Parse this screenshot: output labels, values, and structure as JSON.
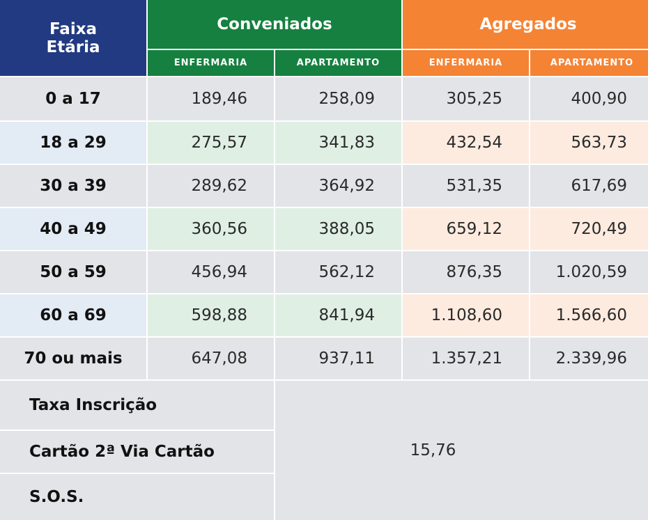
{
  "header": {
    "faixa_line1": "Faixa",
    "faixa_line2": "Etária",
    "group_conveniados": "Conveniados",
    "group_agregados": "Agregados",
    "subheaders": [
      "ENFERMARIA",
      "APARTAMENTO",
      "ENFERMARIA",
      "APARTAMENTO"
    ]
  },
  "rows": [
    {
      "age": "0 a 17",
      "values": [
        "189,46",
        "258,09",
        "305,25",
        "400,90"
      ]
    },
    {
      "age": "18 a 29",
      "values": [
        "275,57",
        "341,83",
        "432,54",
        "563,73"
      ]
    },
    {
      "age": "30 a 39",
      "values": [
        "289,62",
        "364,92",
        "531,35",
        "617,69"
      ]
    },
    {
      "age": "40 a 49",
      "values": [
        "360,56",
        "388,05",
        "659,12",
        "720,49"
      ]
    },
    {
      "age": "50 a 59",
      "values": [
        "456,94",
        "562,12",
        "876,35",
        "1.020,59"
      ]
    },
    {
      "age": "60 a 69",
      "values": [
        "598,88",
        "841,94",
        "1.108,60",
        "1.566,60"
      ]
    },
    {
      "age": "70 ou mais",
      "values": [
        "647,08",
        "937,11",
        "1.357,21",
        "2.339,96"
      ]
    }
  ],
  "fees": {
    "labels": [
      "Taxa Inscrição",
      "Cartão 2ª Via Cartão",
      "S.O.S."
    ],
    "value": "15,76"
  },
  "colors": {
    "navy": "#213a82",
    "green": "#15803f",
    "orange": "#f48334",
    "row_gray": "#e2e4e7",
    "row_light_green": "#dfefe4",
    "row_light_peach": "#fdebe0",
    "row_light_blue": "#e3ebf5"
  }
}
